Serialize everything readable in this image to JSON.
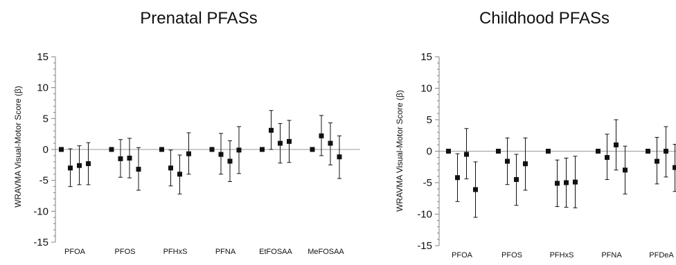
{
  "figure": {
    "panels": [
      {
        "title": "Prenatal PFASs"
      },
      {
        "title": "Childhood PFASs"
      }
    ]
  },
  "chart_data": [
    {
      "type": "scatter",
      "title": "Prenatal PFASs",
      "ylabel": "WRAVMA Visual-Motor Score (β)",
      "xlabel": "",
      "ylim": [
        -15,
        15
      ],
      "y_ticks": [
        15,
        10,
        5,
        0,
        -5,
        -10,
        -15
      ],
      "grid": false,
      "legend": "none",
      "reference_line": 0,
      "categories": [
        "PFOA",
        "PFOS",
        "PFHxS",
        "PFNA",
        "EtFOSAA",
        "MeFOSAA"
      ],
      "points_per_category": 4,
      "groups": [
        {
          "category": "PFOA",
          "estimates": [
            0,
            -3.0,
            -2.6,
            -2.3
          ],
          "lower": [
            0,
            -6.0,
            -5.7,
            -5.7
          ],
          "upper": [
            0,
            0.1,
            0.6,
            1.1
          ]
        },
        {
          "category": "PFOS",
          "estimates": [
            0,
            -1.5,
            -1.4,
            -3.2
          ],
          "lower": [
            0,
            -4.5,
            -4.6,
            -6.6
          ],
          "upper": [
            0,
            1.6,
            1.8,
            0.3
          ]
        },
        {
          "category": "PFHxS",
          "estimates": [
            0,
            -3.0,
            -4.0,
            -0.7
          ],
          "lower": [
            0,
            -5.9,
            -7.2,
            -4.0
          ],
          "upper": [
            0,
            -0.1,
            -0.9,
            2.7
          ]
        },
        {
          "category": "PFNA",
          "estimates": [
            0,
            -0.8,
            -1.9,
            -0.1
          ],
          "lower": [
            0,
            -4.0,
            -5.2,
            -3.9
          ],
          "upper": [
            0,
            2.6,
            1.4,
            3.7
          ]
        },
        {
          "category": "EtFOSAA",
          "estimates": [
            0,
            3.1,
            1.0,
            1.3
          ],
          "lower": [
            0,
            0.0,
            -2.2,
            -2.1
          ],
          "upper": [
            0,
            6.3,
            4.2,
            4.7
          ]
        },
        {
          "category": "MeFOSAA",
          "estimates": [
            0,
            2.2,
            1.0,
            -1.2
          ],
          "lower": [
            0,
            -1.0,
            -2.5,
            -4.7
          ],
          "upper": [
            0,
            5.5,
            4.3,
            2.2
          ]
        }
      ]
    },
    {
      "type": "scatter",
      "title": "Childhood PFASs",
      "ylabel": "WRAVMA Visual-Motor Score (β)",
      "xlabel": "",
      "ylim": [
        -15,
        15
      ],
      "y_ticks": [
        15,
        10,
        5,
        0,
        -5,
        -10,
        -15
      ],
      "grid": false,
      "legend": "none",
      "reference_line": 0,
      "categories": [
        "PFOA",
        "PFOS",
        "PFHxS",
        "PFNA",
        "PFDeA"
      ],
      "points_per_category": 4,
      "groups": [
        {
          "category": "PFOA",
          "estimates": [
            0,
            -4.2,
            -0.5,
            -6.1
          ],
          "lower": [
            0,
            -8.0,
            -4.4,
            -10.5
          ],
          "upper": [
            0,
            -0.4,
            3.6,
            -1.7
          ]
        },
        {
          "category": "PFOS",
          "estimates": [
            0,
            -1.6,
            -4.5,
            -2.0
          ],
          "lower": [
            0,
            -5.3,
            -8.6,
            -6.2
          ],
          "upper": [
            0,
            2.1,
            -0.5,
            2.1
          ]
        },
        {
          "category": "PFHxS",
          "estimates": [
            0,
            -5.1,
            -5.0,
            -4.9
          ],
          "lower": [
            0,
            -8.8,
            -8.9,
            -9.0
          ],
          "upper": [
            0,
            -1.4,
            -1.1,
            -0.8
          ]
        },
        {
          "category": "PFNA",
          "estimates": [
            0,
            -1.0,
            1.0,
            -3.0
          ],
          "lower": [
            0,
            -4.5,
            -3.0,
            -6.8
          ],
          "upper": [
            0,
            2.7,
            5.0,
            0.8
          ]
        },
        {
          "category": "PFDeA",
          "estimates": [
            0,
            -1.6,
            0.0,
            -2.6
          ],
          "lower": [
            0,
            -5.2,
            -4.1,
            -6.4
          ],
          "upper": [
            0,
            2.2,
            3.9,
            1.1
          ]
        }
      ]
    }
  ]
}
